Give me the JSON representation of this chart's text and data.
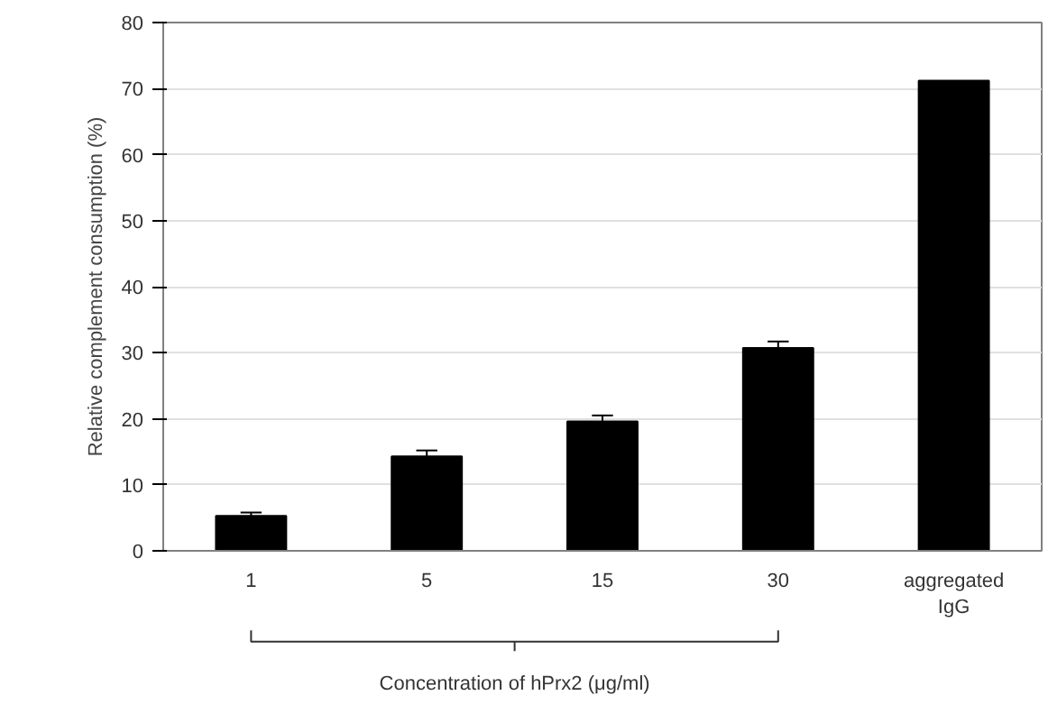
{
  "chart_data": {
    "type": "bar",
    "ylabel": "Relative complement consumption (%)",
    "xlabel": "Concentration of hPrx2 (μg/ml)",
    "categories": [
      "1",
      "5",
      "15",
      "30",
      "aggregated IgG"
    ],
    "values": [
      5.3,
      14.3,
      19.6,
      30.7,
      71.2
    ],
    "errors": [
      0.5,
      0.9,
      0.9,
      1.0,
      null
    ],
    "color": "#000000",
    "ylim": [
      0,
      80
    ],
    "yticks": [
      0,
      10,
      20,
      30,
      40,
      50,
      60,
      70,
      80
    ],
    "grid": "y"
  }
}
